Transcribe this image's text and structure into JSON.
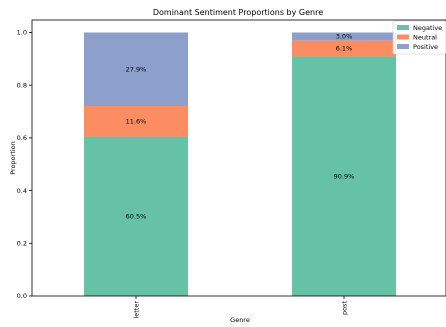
{
  "chart_data": {
    "type": "bar",
    "stacked": true,
    "title": "Dominant Sentiment Proportions by Genre",
    "xlabel": "Genre",
    "ylabel": "Proportion",
    "categories": [
      "letter",
      "post"
    ],
    "ylim": [
      0,
      1.0
    ],
    "yticks": [
      "0.0",
      "0.2",
      "0.4",
      "0.6",
      "0.8",
      "1.0"
    ],
    "grid": false,
    "legend": {
      "position": "top-right"
    },
    "series": [
      {
        "name": "Negative",
        "color": "#66c2a5",
        "values": [
          0.605,
          0.909
        ],
        "labels": [
          "60.5%",
          "90.9%"
        ]
      },
      {
        "name": "Neutral",
        "color": "#fc8d62",
        "values": [
          0.116,
          0.061
        ],
        "labels": [
          "11.6%",
          "6.1%"
        ]
      },
      {
        "name": "Positive",
        "color": "#8da0cb",
        "values": [
          0.279,
          0.03
        ],
        "labels": [
          "27.9%",
          "3.0%"
        ]
      }
    ]
  }
}
